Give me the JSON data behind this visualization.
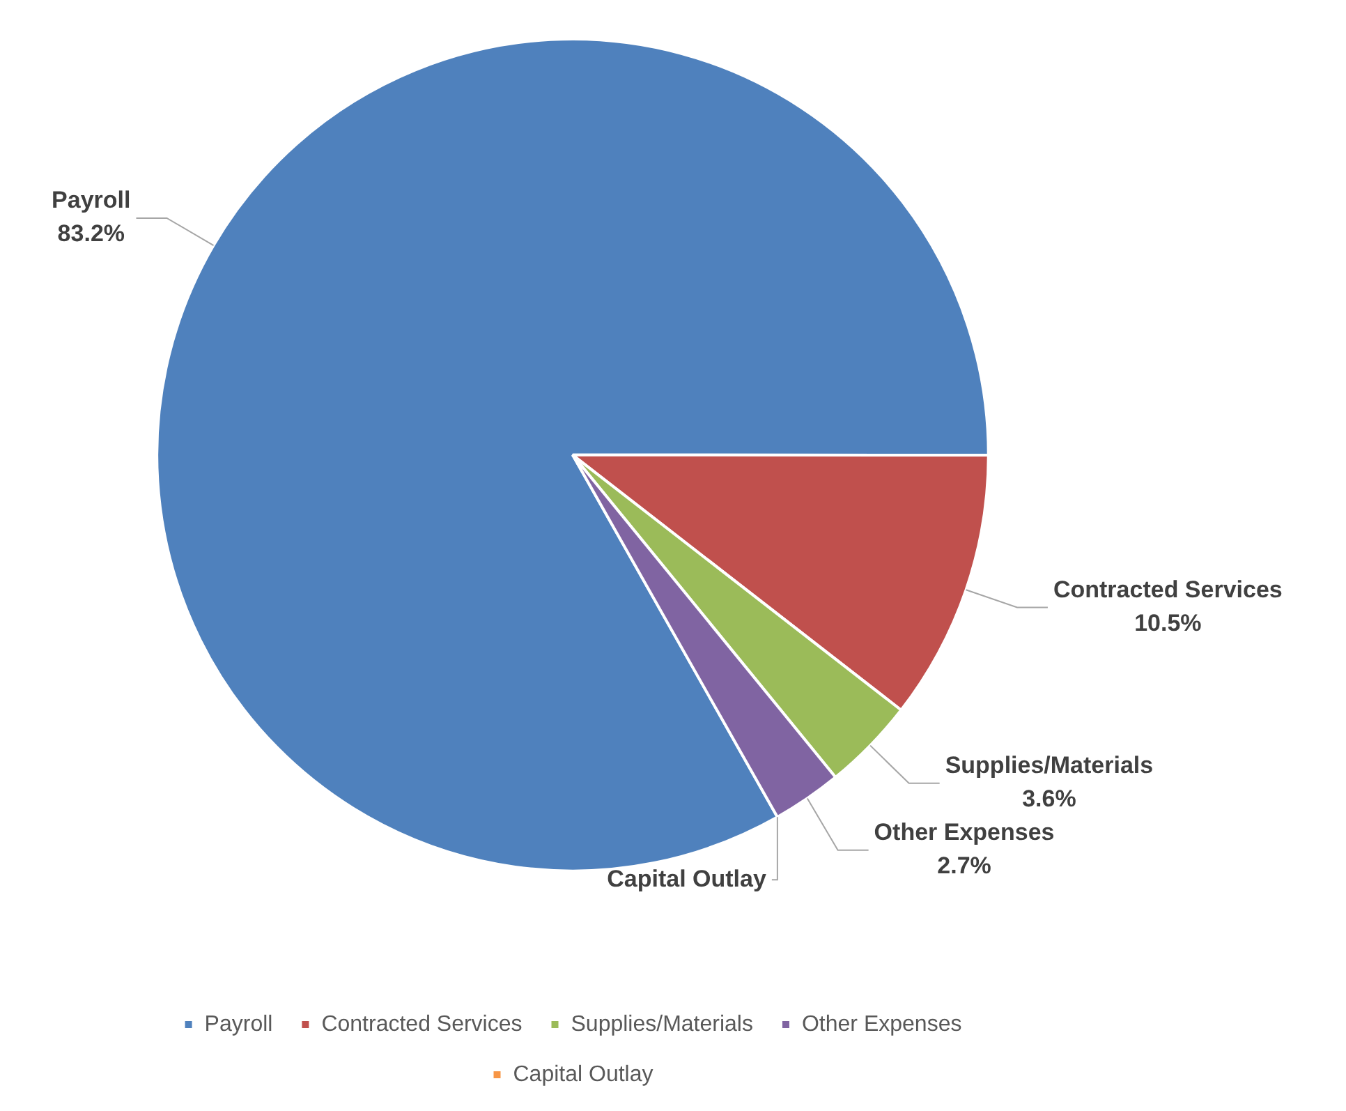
{
  "chart_data": {
    "type": "pie",
    "categories": [
      "Payroll",
      "Contracted Services",
      "Supplies/Materials",
      "Other Expenses",
      "Capital Outlay"
    ],
    "values": [
      83.2,
      10.5,
      3.6,
      2.7,
      0
    ],
    "value_labels": [
      "83.2%",
      "10.5%",
      "3.6%",
      "2.7%",
      null
    ],
    "colors": [
      "#4f81bd",
      "#c0504d",
      "#9bbb59",
      "#8064a2",
      "#f79646"
    ],
    "legend": "bottom"
  }
}
